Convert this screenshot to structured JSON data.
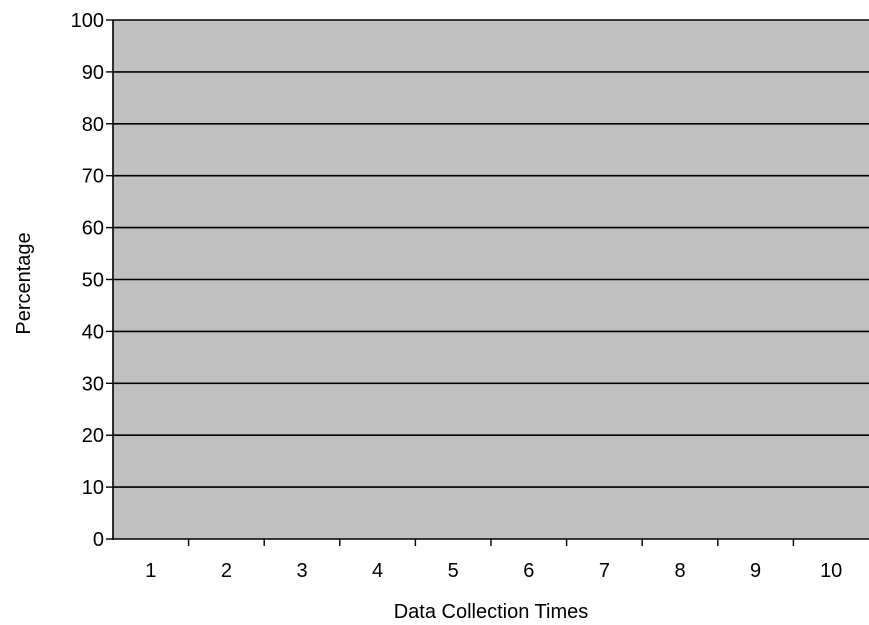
{
  "chart_data": {
    "type": "bar",
    "title": "",
    "xlabel": "Data Collection Times",
    "ylabel": "Percentage",
    "categories": [
      "1",
      "2",
      "3",
      "4",
      "5",
      "6",
      "7",
      "8",
      "9",
      "10"
    ],
    "series": [],
    "ylim": [
      0,
      100
    ],
    "yticks": [
      0,
      10,
      20,
      30,
      40,
      50,
      60,
      70,
      80,
      90,
      100
    ],
    "grid": "horizontal",
    "legend": "none",
    "colors": {
      "plot_background": "#c0c0c0",
      "gridline": "#000000",
      "text": "#000000"
    }
  }
}
